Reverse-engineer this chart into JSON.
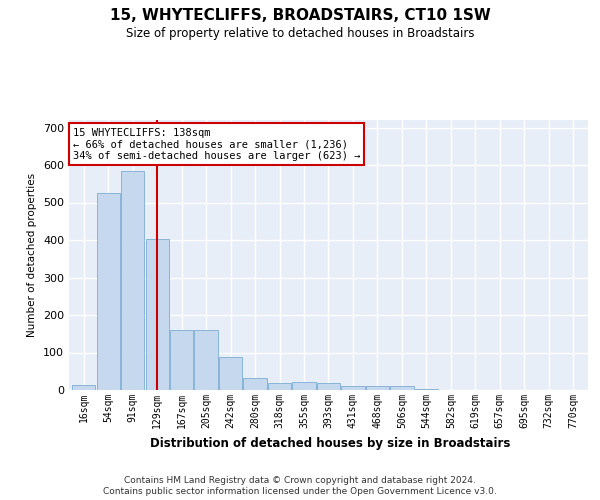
{
  "title": "15, WHYTECLIFFS, BROADSTAIRS, CT10 1SW",
  "subtitle": "Size of property relative to detached houses in Broadstairs",
  "xlabel": "Distribution of detached houses by size in Broadstairs",
  "ylabel": "Number of detached properties",
  "bar_color": "#c5d8ee",
  "bar_edge_color": "#7aadd4",
  "bg_color": "#e8eef8",
  "grid_color": "#ffffff",
  "bins": [
    "16sqm",
    "54sqm",
    "91sqm",
    "129sqm",
    "167sqm",
    "205sqm",
    "242sqm",
    "280sqm",
    "318sqm",
    "355sqm",
    "393sqm",
    "431sqm",
    "468sqm",
    "506sqm",
    "544sqm",
    "582sqm",
    "619sqm",
    "657sqm",
    "695sqm",
    "732sqm",
    "770sqm"
  ],
  "values": [
    14,
    526,
    583,
    404,
    160,
    160,
    88,
    33,
    20,
    22,
    20,
    10,
    11,
    11,
    4,
    0,
    0,
    0,
    0,
    0,
    0
  ],
  "vline_x": 3.0,
  "vline_color": "#cc0000",
  "property_label": "15 WHYTECLIFFS: 138sqm",
  "annotation_line1": "← 66% of detached houses are smaller (1,236)",
  "annotation_line2": "34% of semi-detached houses are larger (623) →",
  "ylim_max": 720,
  "yticks": [
    0,
    100,
    200,
    300,
    400,
    500,
    600,
    700
  ],
  "footer1": "Contains HM Land Registry data © Crown copyright and database right 2024.",
  "footer2": "Contains public sector information licensed under the Open Government Licence v3.0."
}
